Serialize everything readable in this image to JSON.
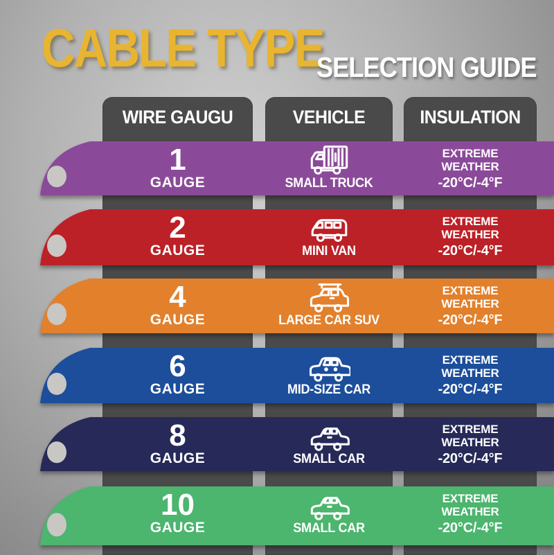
{
  "title": {
    "main": "CABLE TYPE",
    "sub": "SELECTION GUIDE"
  },
  "colors": {
    "title_main": "#e9b42f",
    "title_sub": "#ffffff",
    "header_bg": "#4a4a4a",
    "hole": "#c8c7c4",
    "background_gray": "#b0b0b0",
    "row_colors": [
      "#8b4a99",
      "#bc2127",
      "#e2802c",
      "#1c4e9b",
      "#272a58",
      "#4cb56e"
    ]
  },
  "table": {
    "headers": [
      {
        "label": "WIRE GAUGU"
      },
      {
        "label": "VEHICLE"
      },
      {
        "label": "INSULATION"
      }
    ],
    "rows": [
      {
        "gauge_number": "1",
        "gauge_label": "GAUGE",
        "vehicle_label": "SMALL TRUCK",
        "vehicle_icon": "small-truck-icon",
        "color": "#8b4a99",
        "insulation": {
          "line1": "EXTREME",
          "line2": "WEATHER",
          "temperature": "-20°C/-4°F"
        }
      },
      {
        "gauge_number": "2",
        "gauge_label": "GAUGE",
        "vehicle_label": "MINI VAN",
        "vehicle_icon": "mini-van-icon",
        "color": "#bc2127",
        "insulation": {
          "line1": "EXTREME",
          "line2": "WEATHER",
          "temperature": "-20°C/-4°F"
        }
      },
      {
        "gauge_number": "4",
        "gauge_label": "GAUGE",
        "vehicle_label": "LARGE CAR SUV",
        "vehicle_icon": "suv-icon",
        "color": "#e2802c",
        "insulation": {
          "line1": "EXTREME",
          "line2": "WEATHER",
          "temperature": "-20°C/-4°F"
        }
      },
      {
        "gauge_number": "6",
        "gauge_label": "GAUGE",
        "vehicle_label": "MID-SIZE CAR",
        "vehicle_icon": "mid-size-car-icon",
        "color": "#1c4e9b",
        "insulation": {
          "line1": "EXTREME",
          "line2": "WEATHER",
          "temperature": "-20°C/-4°F"
        }
      },
      {
        "gauge_number": "8",
        "gauge_label": "GAUGE",
        "vehicle_label": "SMALL CAR",
        "vehicle_icon": "small-car-icon",
        "color": "#272a58",
        "insulation": {
          "line1": "EXTREME",
          "line2": "WEATHER",
          "temperature": "-20°C/-4°F"
        }
      },
      {
        "gauge_number": "10",
        "gauge_label": "GAUGE",
        "vehicle_label": "SMALL CAR",
        "vehicle_icon": "small-car-icon",
        "color": "#4cb56e",
        "insulation": {
          "line1": "EXTREME",
          "line2": "WEATHER",
          "temperature": "-20°C/-4°F"
        }
      }
    ]
  }
}
